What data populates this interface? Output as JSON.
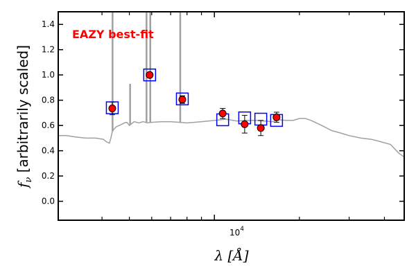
{
  "chart_data": {
    "type": "scatter",
    "annotation": "EAZY best-fit",
    "annotation_color": "#ff0000",
    "xlabel": "λ [Å]",
    "ylabel_symbol": "f",
    "ylabel_sub": "ν",
    "ylabel_rest": " [arbitrarily scaled]",
    "x_scale": "log",
    "xlim": [
      2800,
      47000
    ],
    "ylim": [
      -0.15,
      1.5
    ],
    "yticks": [
      0.0,
      0.2,
      0.4,
      0.6,
      0.8,
      1.0,
      1.2,
      1.4
    ],
    "ytick_labels": [
      "0.0",
      "0.2",
      "0.4",
      "0.6",
      "0.8",
      "1.0",
      "1.2",
      "1.4"
    ],
    "xtick_label_base": "10",
    "xtick_label_exp": "4",
    "xtick_major": 10000,
    "xtick_minor": [
      4000,
      5000,
      6000,
      7000,
      8000,
      9000,
      20000,
      30000,
      40000
    ],
    "model_color": "#a0a0a0",
    "observed_color": "#ff0000",
    "model_marker_color": "#0000ff",
    "series": [
      {
        "kind": "observed",
        "x": [
          4350,
          5900,
          7700,
          10700,
          12800,
          14600,
          16600
        ],
        "y": [
          0.735,
          1.0,
          0.805,
          0.695,
          0.61,
          0.58,
          0.665
        ],
        "yerr": [
          0.05,
          0.02,
          0.03,
          0.04,
          0.07,
          0.06,
          0.04
        ]
      },
      {
        "kind": "model",
        "x": [
          4350,
          5900,
          7700,
          10700,
          12800,
          14600,
          16600
        ],
        "y": [
          0.74,
          1.0,
          0.81,
          0.645,
          0.66,
          0.65,
          0.64
        ]
      },
      {
        "kind": "template",
        "x": [
          2800,
          3000,
          3200,
          3500,
          3800,
          4050,
          4150,
          4250,
          4300,
          4350,
          4400,
          4500,
          4600,
          4700,
          4800,
          4900,
          5000,
          5200,
          5400,
          5600,
          5800,
          6000,
          6500,
          7000,
          7500,
          8000,
          9000,
          10000,
          11000,
          12000,
          13000,
          14000,
          15000,
          16000,
          17000,
          18000,
          19000,
          20000,
          21000,
          22000,
          24000,
          26000,
          28000,
          30000,
          33000,
          36000,
          39000,
          42000,
          45000,
          47000
        ],
        "y": [
          0.52,
          0.52,
          0.51,
          0.5,
          0.5,
          0.49,
          0.47,
          0.46,
          0.5,
          0.55,
          0.57,
          0.59,
          0.6,
          0.61,
          0.62,
          0.625,
          0.6,
          0.63,
          0.62,
          0.63,
          0.62,
          0.625,
          0.63,
          0.63,
          0.625,
          0.62,
          0.63,
          0.64,
          0.65,
          0.635,
          0.64,
          0.64,
          0.635,
          0.63,
          0.645,
          0.64,
          0.64,
          0.655,
          0.655,
          0.64,
          0.6,
          0.56,
          0.54,
          0.52,
          0.5,
          0.49,
          0.47,
          0.45,
          0.38,
          0.35
        ],
        "emission_lines": [
          {
            "x": 4360,
            "top": 1.5
          },
          {
            "x": 5030,
            "top": 0.93
          },
          {
            "x": 5750,
            "top": 1.5
          },
          {
            "x": 5930,
            "top": 1.5
          },
          {
            "x": 7570,
            "top": 1.5
          }
        ]
      }
    ]
  }
}
